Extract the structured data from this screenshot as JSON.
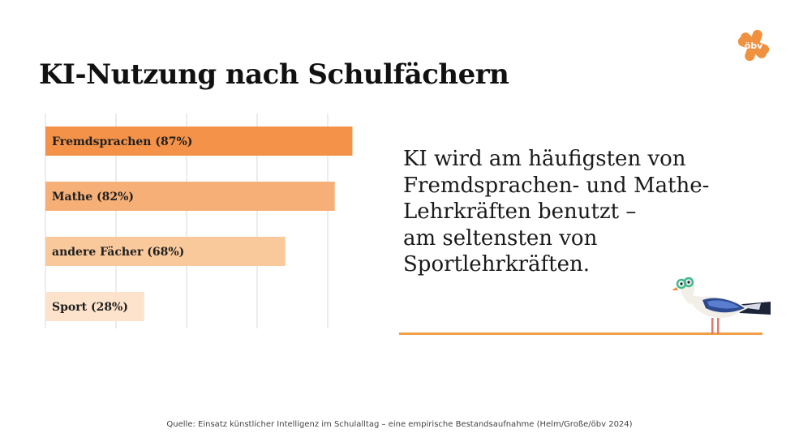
{
  "header": {
    "title": "KI-Nutzung nach Schulfächern",
    "logo_text": "öbv"
  },
  "chart_data": {
    "type": "bar",
    "orientation": "horizontal",
    "categories": [
      "Fremdsprachen",
      "Mathe",
      "andere Fächer",
      "Sport"
    ],
    "values": [
      87,
      82,
      68,
      28
    ],
    "bar_labels": [
      "Fremdsprachen (87%)",
      "Mathe (82%)",
      "andere Fächer (68%)",
      "Sport (28%)"
    ],
    "bar_colors": [
      "#f39248",
      "#f6af76",
      "#f9c99c",
      "#fde3cb"
    ],
    "xlim": [
      0,
      100
    ],
    "grid": true,
    "title": "",
    "xlabel": "",
    "ylabel": ""
  },
  "statement": {
    "lines": [
      "KI wird am häufigsten von",
      "Fremdsprachen- und Mathe-",
      "Lehrkräften benutzt –",
      "am seltensten von",
      "Sportlehrkräften."
    ]
  },
  "footer": {
    "source": "Quelle: Einsatz künstlicher Intelligenz im Schulalltag – eine empirische Bestandsaufnahme (Helm/Große/öbv 2024)"
  },
  "colors": {
    "accent": "#f39248",
    "ground_line": "#f0a04b",
    "grid": "#e6e6e6"
  }
}
